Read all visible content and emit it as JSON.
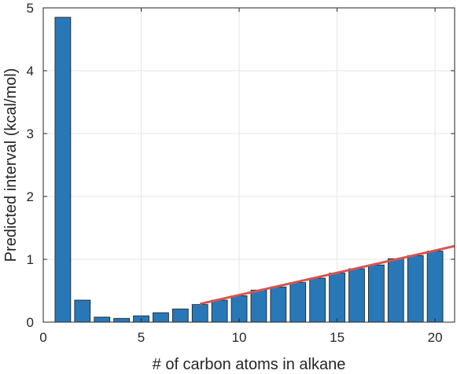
{
  "chart_data": {
    "type": "bar",
    "xlabel": "# of carbon atoms in alkane",
    "ylabel": "Predicted interval (kcal/mol)",
    "xlim": [
      0,
      21
    ],
    "ylim": [
      0,
      5
    ],
    "xticks": [
      0,
      5,
      10,
      15,
      20
    ],
    "yticks": [
      0,
      1,
      2,
      3,
      4,
      5
    ],
    "grid": true,
    "bar_color": "#2878b8",
    "line_color": "#d9534f",
    "categories": [
      1,
      2,
      3,
      4,
      5,
      6,
      7,
      8,
      9,
      10,
      11,
      12,
      13,
      14,
      15,
      16,
      17,
      18,
      19,
      20
    ],
    "values": [
      4.85,
      0.35,
      0.08,
      0.06,
      0.1,
      0.15,
      0.21,
      0.28,
      0.35,
      0.42,
      0.51,
      0.56,
      0.63,
      0.7,
      0.78,
      0.85,
      0.91,
      1.01,
      1.06,
      1.13
    ],
    "trend_line": {
      "x": [
        8,
        21
      ],
      "y": [
        0.29,
        1.21
      ]
    }
  }
}
